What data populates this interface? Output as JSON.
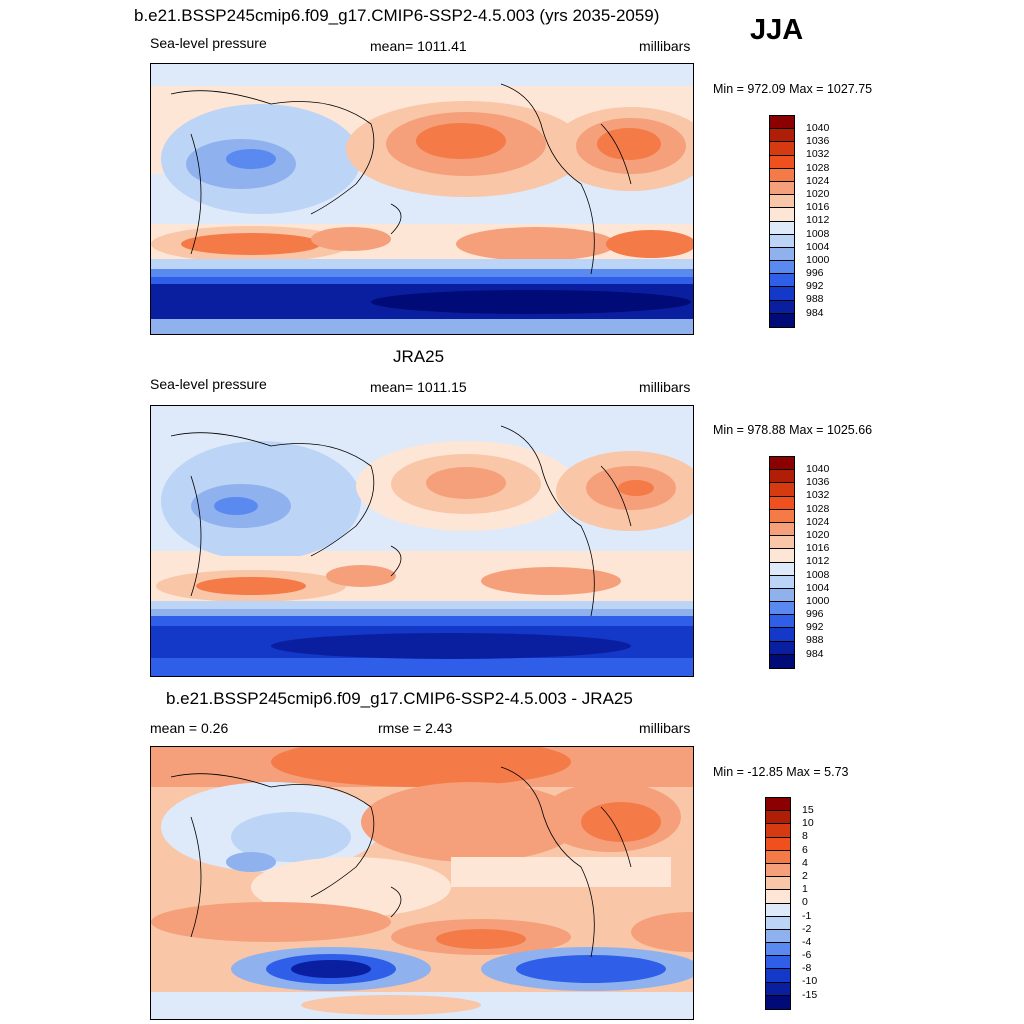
{
  "season": "JJA",
  "panels": [
    {
      "title": "b.e21.BSSP245cmip6.f09_g17.CMIP6-SSP2-4.5.003 (yrs 2035-2059)",
      "left_label": "Sea-level pressure",
      "center_label": "mean= 1011.41",
      "right_label": "millibars",
      "minmax": "Min = 972.09 Max = 1027.75",
      "colorbar_labels": [
        "1040",
        "1036",
        "1032",
        "1028",
        "1024",
        "1020",
        "1016",
        "1012",
        "1008",
        "1004",
        "1000",
        "996",
        "992",
        "988",
        "984"
      ]
    },
    {
      "title": "JRA25",
      "left_label": "Sea-level pressure",
      "center_label": "mean= 1011.15",
      "right_label": "millibars",
      "minmax": "Min = 978.88 Max = 1025.66",
      "colorbar_labels": [
        "1040",
        "1036",
        "1032",
        "1028",
        "1024",
        "1020",
        "1016",
        "1012",
        "1008",
        "1004",
        "1000",
        "996",
        "992",
        "988",
        "984"
      ]
    },
    {
      "title": "b.e21.BSSP245cmip6.f09_g17.CMIP6-SSP2-4.5.003 - JRA25",
      "left_label": "mean =   0.26",
      "center_label": "rmse =   2.43",
      "right_label": "millibars",
      "minmax": "Min = -12.85 Max =   5.73",
      "colorbar_labels": [
        "15",
        "10",
        "8",
        "6",
        "4",
        "2",
        "1",
        "0",
        "-1",
        "-2",
        "-4",
        "-6",
        "-8",
        "-10",
        "-15"
      ]
    }
  ],
  "colors": {
    "scale": [
      "#8b0000",
      "#b01e08",
      "#d63a10",
      "#f0501e",
      "#f47a48",
      "#f5a07a",
      "#f9c6a8",
      "#fde6d6",
      "#deeafa",
      "#bcd4f5",
      "#8fb2ef",
      "#5a8af0",
      "#2f5ee8",
      "#1438c8",
      "#0a1fa0",
      "#000b78"
    ]
  }
}
